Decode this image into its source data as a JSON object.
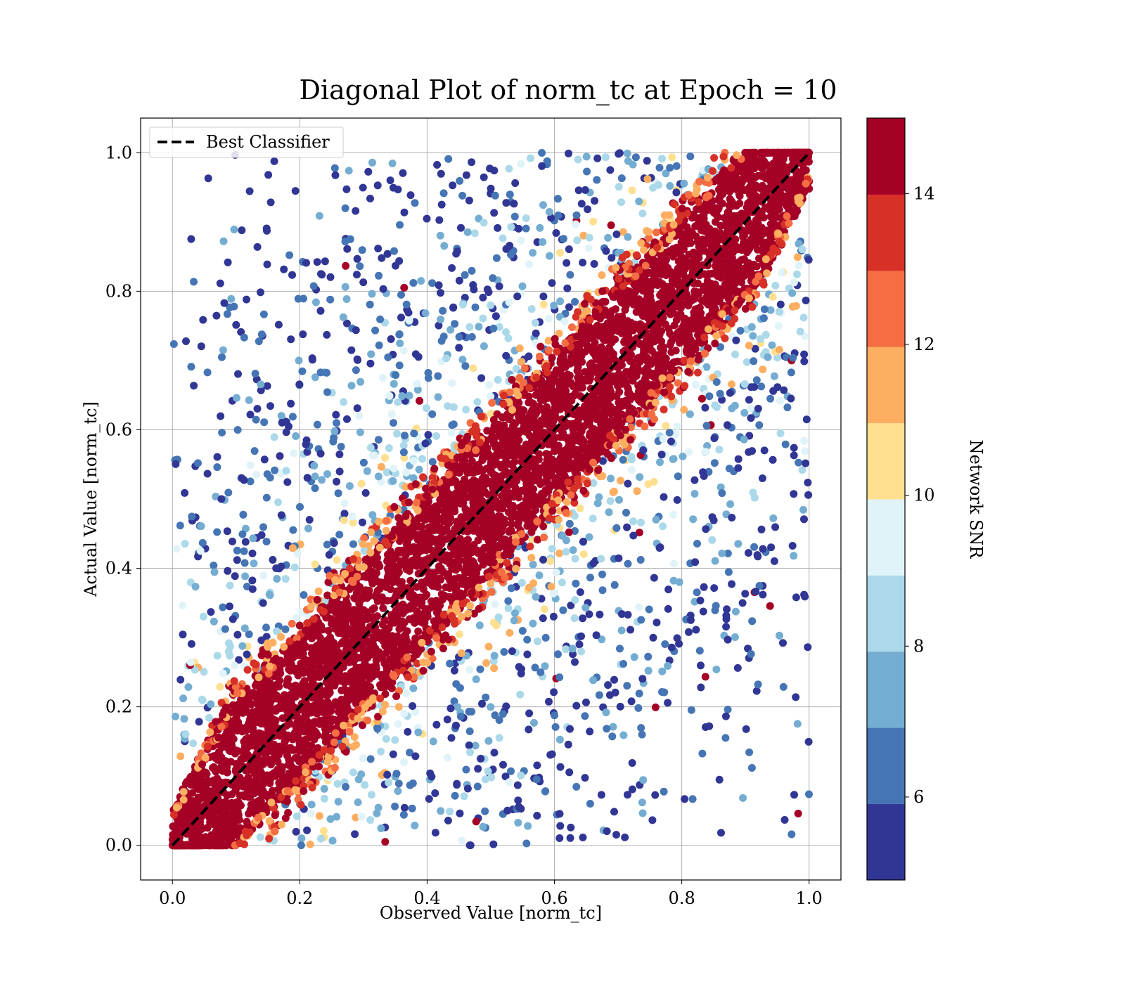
{
  "chart_data": {
    "type": "scatter",
    "title": "Diagonal Plot of norm_tc at Epoch = 10",
    "xlabel": "Observed Value [norm_tc]",
    "ylabel": "Actual Value [norm_tc]",
    "xlim": [
      -0.05,
      1.05
    ],
    "ylim": [
      -0.05,
      1.05
    ],
    "xticks": [
      "0.0",
      "0.2",
      "0.4",
      "0.6",
      "0.8",
      "1.0"
    ],
    "yticks": [
      "0.0",
      "0.2",
      "0.4",
      "0.6",
      "0.8",
      "1.0"
    ],
    "grid": true,
    "legend": {
      "placement": "upper-left",
      "entries": [
        {
          "label": "Best Classifier",
          "style": "black dashed line"
        }
      ]
    },
    "reference_line": {
      "name": "Best Classifier",
      "x": [
        0,
        1
      ],
      "y": [
        0,
        1
      ],
      "color": "#000000",
      "style": "dashed"
    },
    "points_description": {
      "x_range": [
        0,
        1
      ],
      "y_range": [
        0,
        1
      ],
      "dense_band_half_width_high_snr": 0.11,
      "high_snr_color": "#a50026",
      "low_snr_spread": "points with low Network SNR scatter widely away from the diagonal"
    },
    "colorbar": {
      "label": "Network SNR",
      "range": [
        4.9,
        15
      ],
      "ticks": [
        "6",
        "8",
        "10",
        "12",
        "14"
      ],
      "tick_values": [
        6,
        8,
        10,
        12,
        14
      ],
      "colormap": "RdYlBu_r (discrete, 10 levels)",
      "colors": [
        "#313695",
        "#4575b4",
        "#74add1",
        "#abd9e9",
        "#e0f3f8",
        "#fee090",
        "#fdae61",
        "#f46d43",
        "#d73027",
        "#a50026"
      ],
      "band_edges": [
        4.9,
        5.91,
        6.92,
        7.93,
        8.94,
        9.95,
        10.96,
        11.97,
        12.98,
        13.99,
        15
      ]
    }
  }
}
